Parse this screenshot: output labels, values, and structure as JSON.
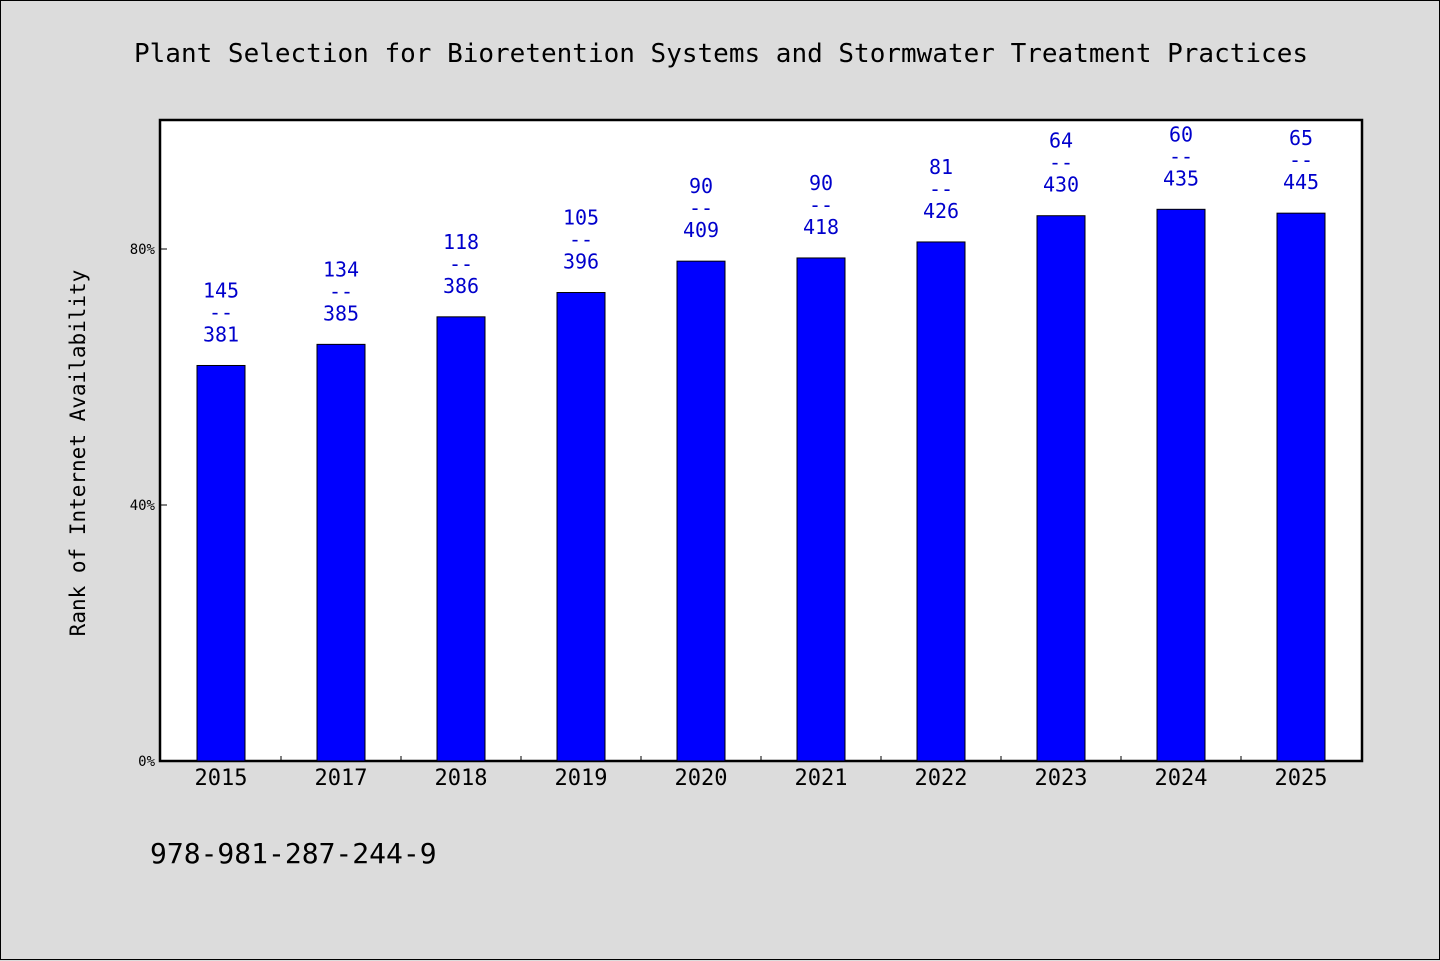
{
  "chart_data": {
    "type": "bar",
    "title": "Plant Selection for Bioretention Systems and Stormwater Treatment Practices",
    "ylabel": "Rank of Internet Availability",
    "xlabel": "",
    "ylim": [
      0,
      100
    ],
    "yticks": [
      0,
      40,
      80
    ],
    "ytick_suffix": "%",
    "categories": [
      "2015",
      "2017",
      "2018",
      "2019",
      "2020",
      "2021",
      "2022",
      "2023",
      "2024",
      "2025"
    ],
    "values": [
      61.8,
      65.1,
      69.4,
      73.2,
      78.1,
      78.6,
      81.1,
      85.2,
      86.2,
      85.6
    ],
    "bar_labels": [
      {
        "top": "145",
        "bottom": "381"
      },
      {
        "top": "134",
        "bottom": "385"
      },
      {
        "top": "118",
        "bottom": "386"
      },
      {
        "top": "105",
        "bottom": "396"
      },
      {
        "top": "90",
        "bottom": "409"
      },
      {
        "top": "90",
        "bottom": "418"
      },
      {
        "top": "81",
        "bottom": "426"
      },
      {
        "top": "64",
        "bottom": "430"
      },
      {
        "top": "60",
        "bottom": "435"
      },
      {
        "top": "65",
        "bottom": "445"
      }
    ],
    "label_separator": "--",
    "bar_color": "#0000ff",
    "label_color": "#0000cc",
    "plot_background": "#ffffff",
    "page_background": "#dcdcdc",
    "grid": false,
    "legend": "none"
  },
  "footer": {
    "isbn": "978-981-287-244-9"
  }
}
